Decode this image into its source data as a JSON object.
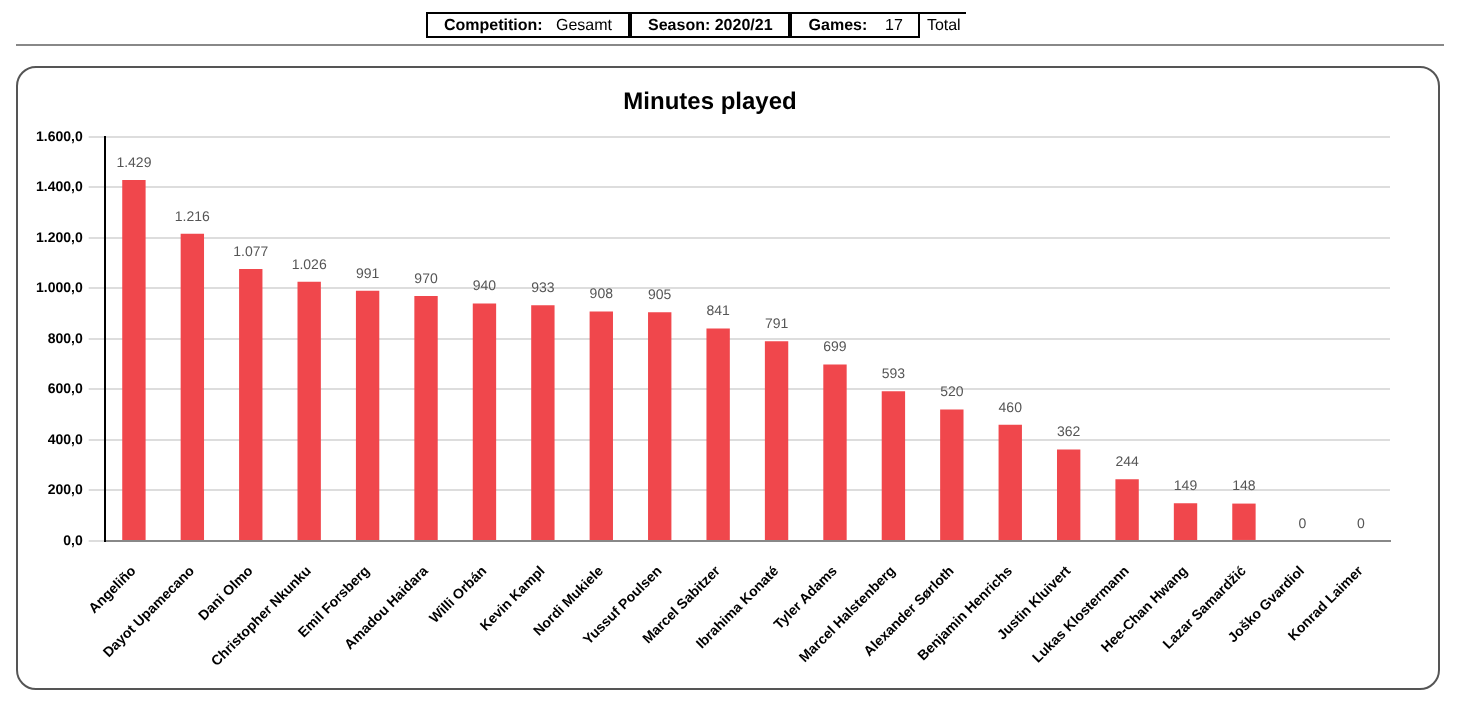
{
  "chart_data": {
    "type": "bar",
    "title": "Minutes played",
    "annotations": [
      "Competition:",
      "Gesamt",
      "Season: 2020/21",
      "Games:",
      "17",
      "Total"
    ],
    "categories": [
      "Angeliño",
      "Dayot Upamecano",
      "Dani Olmo",
      "Christopher Nkunku",
      "Emil Forsberg",
      "Amadou Haidara",
      "Willi Orbán",
      "Kevin Kampl",
      "Nordi Mukiele",
      "Yussuf Poulsen",
      "Marcel Sabitzer",
      "Ibrahima Konaté",
      "Tyler Adams",
      "Marcel Halstenberg",
      "Alexander Sørloth",
      "Benjamin Henrichs",
      "Justin Kluivert",
      "Lukas Klostermann",
      "Hee-Chan Hwang",
      "Lazar Samardžić",
      "Joško Gvardiol",
      "Konrad Laimer"
    ],
    "values": [
      1429,
      1216,
      1077,
      1026,
      991,
      970,
      940,
      933,
      908,
      905,
      841,
      791,
      699,
      593,
      520,
      460,
      362,
      244,
      149,
      148,
      0,
      0
    ],
    "value_labels": [
      "1.429",
      "1.216",
      "1.077",
      "1.026",
      "991",
      "970",
      "940",
      "933",
      "908",
      "905",
      "841",
      "791",
      "699",
      "593",
      "520",
      "460",
      "362",
      "244",
      "149",
      "148",
      "0",
      "0"
    ],
    "color": "#f0474c",
    "ylim": [
      0,
      1600
    ],
    "yticks": [
      {
        "value": 0,
        "label": "0,0"
      },
      {
        "value": 200,
        "label": "200,0"
      },
      {
        "value": 400,
        "label": "400,0"
      },
      {
        "value": 600,
        "label": "600,0"
      },
      {
        "value": 800,
        "label": "800,0"
      },
      {
        "value": 1000,
        "label": "1.000,0"
      },
      {
        "value": 1200,
        "label": "1.200,0"
      },
      {
        "value": 1400,
        "label": "1.400,0"
      },
      {
        "value": 1600,
        "label": "1.600,0"
      }
    ],
    "grid": "y",
    "legend": false
  }
}
